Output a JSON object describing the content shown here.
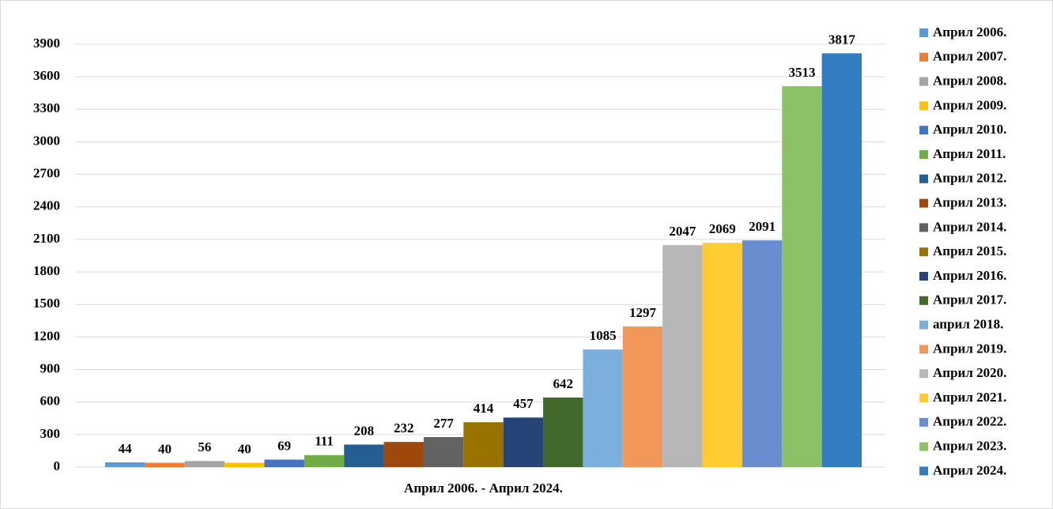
{
  "chart_data": {
    "type": "bar",
    "categories": [
      "Април 2006. - Април 2024."
    ],
    "ylim": [
      0,
      3900
    ],
    "yticks": [
      0,
      300,
      600,
      900,
      1200,
      1500,
      1800,
      2100,
      2400,
      2700,
      3000,
      3300,
      3600,
      3900
    ],
    "grid": true,
    "legend": "right",
    "series": [
      {
        "name": "Април 2006.",
        "color": "#5b9bd5",
        "values": [
          44
        ]
      },
      {
        "name": "Април 2007.",
        "color": "#ed7d31",
        "values": [
          40
        ]
      },
      {
        "name": "Април 2008.",
        "color": "#a5a5a5",
        "values": [
          56
        ]
      },
      {
        "name": "Април 2009.",
        "color": "#ffc000",
        "values": [
          40
        ]
      },
      {
        "name": "Април 2010.",
        "color": "#4472c4",
        "values": [
          69
        ]
      },
      {
        "name": "Април 2011.",
        "color": "#70ad47",
        "values": [
          111
        ]
      },
      {
        "name": "Април 2012.",
        "color": "#255e91",
        "values": [
          208
        ]
      },
      {
        "name": "Април 2013.",
        "color": "#9e480e",
        "values": [
          232
        ]
      },
      {
        "name": "Април 2014.",
        "color": "#636363",
        "values": [
          277
        ]
      },
      {
        "name": "Април 2015.",
        "color": "#997300",
        "values": [
          414
        ]
      },
      {
        "name": "Април 2016.",
        "color": "#264478",
        "values": [
          457
        ]
      },
      {
        "name": "Април 2017.",
        "color": "#43682b",
        "values": [
          642
        ]
      },
      {
        "name": "април 2018.",
        "color": "#7cafdd",
        "values": [
          1085
        ]
      },
      {
        "name": "Април 2019.",
        "color": "#f1975a",
        "values": [
          1297
        ]
      },
      {
        "name": "Април 2020.",
        "color": "#b7b7b7",
        "values": [
          2047
        ]
      },
      {
        "name": "Април 2021.",
        "color": "#ffcd33",
        "values": [
          2069
        ]
      },
      {
        "name": "Април 2022.",
        "color": "#698ed0",
        "values": [
          2091
        ]
      },
      {
        "name": "Април 2023.",
        "color": "#8cc168",
        "values": [
          3513
        ]
      },
      {
        "name": "Април 2024.",
        "color": "#327dc2",
        "values": [
          3817
        ]
      }
    ]
  }
}
